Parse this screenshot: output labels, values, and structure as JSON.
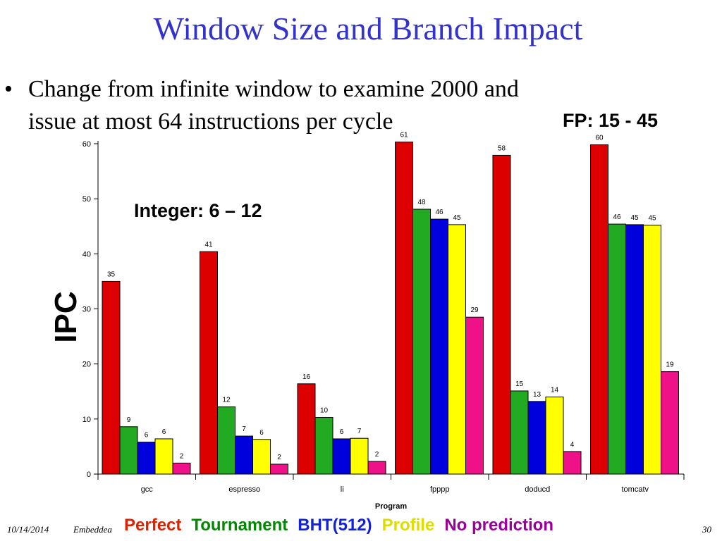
{
  "slide": {
    "title": "Window Size and Branch Impact",
    "bullet": "Change from infinite window to examine 2000 and issue at most 64 instructions per cycle",
    "bullet_marker": "•",
    "footer_date": "10/14/2014",
    "footer_text": "Embeddea",
    "page_number": "30"
  },
  "annotations": {
    "fp": "FP: 15 - 45",
    "integer": "Integer: 6 – 12"
  },
  "chart_data": {
    "type": "bar",
    "title": "",
    "xlabel": "Program",
    "ylabel": "IPC",
    "ylim": [
      0,
      60
    ],
    "yticks": [
      "0",
      "10",
      "20",
      "30",
      "40",
      "50",
      "60"
    ],
    "grid": false,
    "legend_placement": "bottom",
    "categories": [
      "gcc",
      "espresso",
      "li",
      "fpppp",
      "doducd",
      "tomcatv"
    ],
    "series": [
      {
        "name": "Perfect",
        "color": "#dd0000",
        "values": [
          35,
          41,
          16,
          61,
          58,
          60
        ],
        "value_positions": [
          35,
          40.4,
          16.4,
          60.3,
          57.9,
          59.8
        ]
      },
      {
        "name": "Tournament",
        "color": "#22aa22",
        "values": [
          9,
          12,
          10,
          48,
          15,
          46
        ],
        "value_positions": [
          8.6,
          12.2,
          10.3,
          48.1,
          15.1,
          45.4
        ]
      },
      {
        "name": "BHT(512)",
        "color": "#0000dd",
        "values": [
          6,
          7,
          6,
          46,
          13,
          45
        ],
        "value_positions": [
          5.8,
          6.9,
          6.4,
          46.3,
          13.2,
          45.3
        ]
      },
      {
        "name": "Profile",
        "color": "#ffff00",
        "values": [
          6,
          6,
          7,
          45,
          14,
          45
        ],
        "value_positions": [
          6.4,
          6.3,
          6.5,
          45.3,
          14.0,
          45.2
        ]
      },
      {
        "name": "No prediction",
        "color": "#ee1188",
        "values": [
          2,
          2,
          2,
          29,
          4,
          19
        ],
        "value_positions": [
          2.0,
          1.8,
          2.3,
          28.5,
          4.1,
          18.6
        ]
      }
    ],
    "legend_colors": [
      "#dd2200",
      "#008800",
      "#1122dd",
      "#dddd00",
      "#990099"
    ]
  }
}
